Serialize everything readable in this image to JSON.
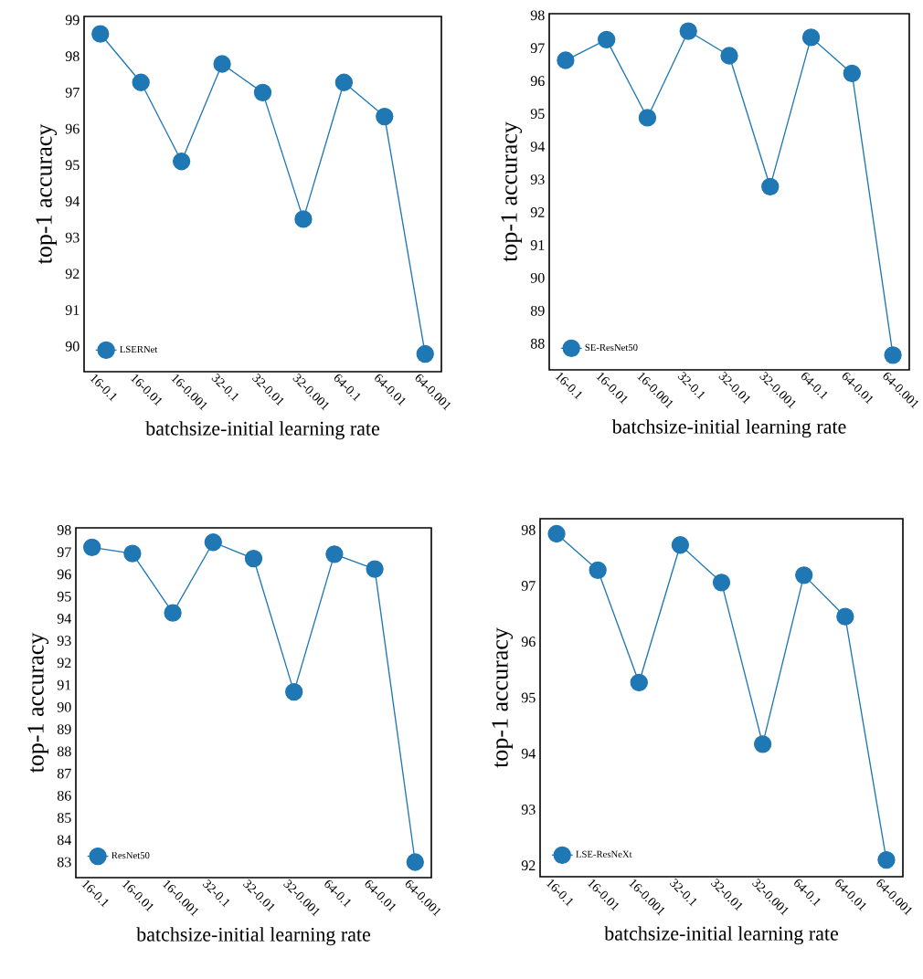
{
  "chart_data": [
    {
      "type": "line",
      "categories": [
        "16-0.1",
        "16-0.01",
        "16-0.001",
        "32-0.1",
        "32-0.01",
        "32-0.001",
        "64-0.1",
        "64-0.01",
        "64-0.001"
      ],
      "series": [
        {
          "name": "LSERNet",
          "color": "#1f77b4",
          "values": [
            98.62,
            97.28,
            95.1,
            97.79,
            97.0,
            93.51,
            97.28,
            96.34,
            89.79
          ]
        }
      ],
      "ylim": [
        89.3,
        99.1
      ],
      "yticks": [
        90,
        91,
        92,
        93,
        94,
        95,
        96,
        97,
        98,
        99
      ],
      "xlabel": "batchsize-initial learning rate",
      "ylabel": "top-1 accuracy",
      "legend": "bottom left",
      "marker": "circle"
    },
    {
      "type": "line",
      "categories": [
        "16-0.1",
        "16-0.01",
        "16-0.001",
        "32-0.1",
        "32-0.01",
        "32-0.001",
        "64-0.1",
        "64-0.01",
        "64-0.001"
      ],
      "series": [
        {
          "name": "SE-ResNet50",
          "color": "#1f77b4",
          "values": [
            96.63,
            97.26,
            94.88,
            97.52,
            96.77,
            92.78,
            97.33,
            96.23,
            87.65
          ]
        }
      ],
      "ylim": [
        87.2,
        98.05
      ],
      "yticks": [
        88,
        89,
        90,
        91,
        92,
        93,
        94,
        95,
        96,
        97,
        98
      ],
      "xlabel": "batchsize-initial learning rate",
      "ylabel": "top-1 accuracy",
      "legend": "bottom left",
      "marker": "circle"
    },
    {
      "type": "line",
      "categories": [
        "16-0.1",
        "16-0.01",
        "16-0.001",
        "32-0.1",
        "32-0.01",
        "32-0.001",
        "64-0.1",
        "64-0.01",
        "64-0.001"
      ],
      "series": [
        {
          "name": "ResNet50",
          "color": "#1f77b4",
          "values": [
            97.22,
            96.94,
            94.26,
            97.45,
            96.71,
            90.69,
            96.91,
            96.24,
            83.0
          ]
        }
      ],
      "ylim": [
        82.3,
        98.1
      ],
      "yticks": [
        83,
        84,
        85,
        86,
        87,
        88,
        89,
        90,
        91,
        92,
        93,
        94,
        95,
        96,
        97,
        98
      ],
      "xlabel": "batchsize-initial learning rate",
      "ylabel": "top-1 accuracy",
      "legend": "bottom left",
      "marker": "circle"
    },
    {
      "type": "line",
      "categories": [
        "16-0.1",
        "16-0.01",
        "16-0.001",
        "32-0.1",
        "32-0.01",
        "32-0.001",
        "64-0.1",
        "64-0.01",
        "64-0.001"
      ],
      "series": [
        {
          "name": "LSE-ResNeXt",
          "color": "#1f77b4",
          "values": [
            97.93,
            97.28,
            95.27,
            97.73,
            97.06,
            94.17,
            97.19,
            96.45,
            92.1
          ]
        }
      ],
      "ylim": [
        91.8,
        98.2
      ],
      "yticks": [
        92,
        93,
        94,
        95,
        96,
        97,
        98
      ],
      "xlabel": "batchsize-initial learning rate",
      "ylabel": "top-1 accuracy",
      "legend": "bottom left",
      "marker": "circle"
    }
  ]
}
